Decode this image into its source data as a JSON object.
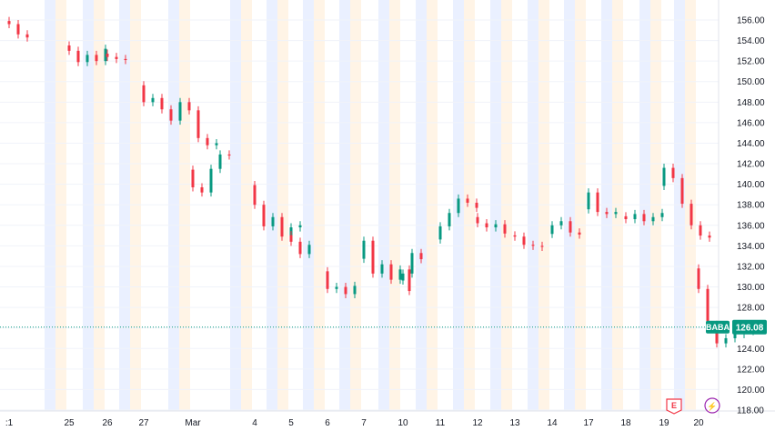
{
  "chart_data": {
    "type": "candlestick",
    "ticker": "BABA",
    "last_price": 126.08,
    "ylim": [
      118,
      157
    ],
    "y_ticks": [
      118,
      120,
      122,
      124,
      126,
      128,
      130,
      132,
      134,
      136,
      138,
      140,
      142,
      144,
      146,
      148,
      150,
      152,
      154,
      156
    ],
    "x_tick_labels": [
      ":1",
      "25",
      "26",
      "27",
      "Mar",
      "4",
      "5",
      "6",
      "7",
      "10",
      "11",
      "12",
      "13",
      "14",
      "17",
      "18",
      "19",
      "20"
    ],
    "sessions": [
      {
        "label": ":1",
        "prices": [
          155.6,
          154.6,
          154.3
        ]
      },
      {
        "label": "25",
        "prices": [
          153.0,
          151.9,
          152.6,
          152.0,
          153.2
        ]
      },
      {
        "label": "26",
        "prices": [
          152.4,
          152.2,
          152.1
        ]
      },
      {
        "label": "27",
        "prices": [
          148.0,
          148.4,
          147.3,
          146.2,
          148.0,
          147.2,
          144.5,
          143.8,
          144.0
        ]
      },
      {
        "label": "Mar",
        "prices": [
          139.7,
          139.2,
          141.5,
          142.9,
          142.8
        ]
      },
      {
        "label": "4",
        "prices": [
          138.0,
          135.9,
          136.8,
          134.9,
          135.8,
          136.0
        ]
      },
      {
        "label": "5",
        "prices": [
          134.4,
          133.2,
          134.1
        ]
      },
      {
        "label": "6",
        "prices": [
          129.8,
          130.0,
          129.3,
          130.1
        ]
      },
      {
        "label": "7",
        "prices": [
          134.5,
          131.3,
          132.2,
          130.7,
          131.7,
          129.6
        ]
      },
      {
        "label": "10",
        "prices": [
          131.3,
          133.3,
          132.7
        ]
      },
      {
        "label": "11",
        "prices": [
          135.9,
          137.2,
          138.6,
          138.2,
          137.7
        ]
      },
      {
        "label": "12",
        "prices": [
          136.2,
          135.8,
          136.1,
          135.2
        ]
      },
      {
        "label": "13",
        "prices": [
          134.9,
          134.1,
          134.0,
          133.9
        ]
      },
      {
        "label": "14",
        "prices": [
          136.0,
          136.4,
          135.3,
          135.1
        ]
      },
      {
        "label": "17",
        "prices": [
          139.2,
          137.3,
          137.1,
          137.3
        ]
      },
      {
        "label": "18",
        "prices": [
          136.6,
          137.1,
          136.4,
          136.8,
          137.2
        ]
      },
      {
        "label": "19",
        "prices": [
          141.6,
          140.6,
          138.1,
          136.0,
          135.0,
          134.8
        ]
      },
      {
        "label": "20",
        "prices": [
          129.8,
          126.3,
          124.5,
          125.0,
          125.4,
          125.7,
          126.08
        ]
      }
    ],
    "event_markers": [
      {
        "type": "earnings",
        "label": "E",
        "session": "19"
      },
      {
        "type": "dividend",
        "label": "⚡",
        "session": "20"
      }
    ]
  }
}
